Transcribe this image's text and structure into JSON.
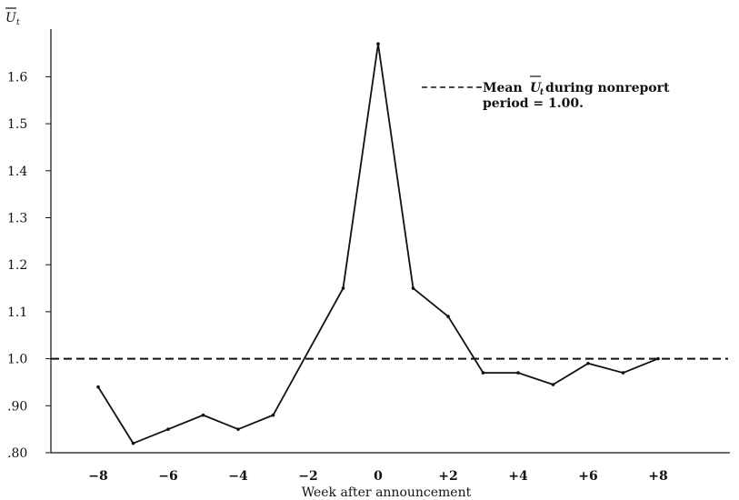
{
  "chart_data": {
    "type": "line",
    "xlabel": "Week after announcement",
    "ylabel": "U",
    "ylabel_subscript": "t",
    "xlim": [
      -9,
      10.5
    ],
    "ylim": [
      0.8,
      1.7
    ],
    "x_ticks": [
      {
        "value": -8,
        "label": "−8"
      },
      {
        "value": -6,
        "label": "−6"
      },
      {
        "value": -4,
        "label": "−4"
      },
      {
        "value": -2,
        "label": "−2"
      },
      {
        "value": 0,
        "label": "0"
      },
      {
        "value": 2,
        "label": "+2"
      },
      {
        "value": 4,
        "label": "+4"
      },
      {
        "value": 6,
        "label": "+6"
      },
      {
        "value": 8,
        "label": "+8"
      }
    ],
    "y_ticks": [
      {
        "value": 0.8,
        "label": ".80"
      },
      {
        "value": 0.9,
        "label": ".90"
      },
      {
        "value": 1.0,
        "label": "1.0"
      },
      {
        "value": 1.1,
        "label": "1.1"
      },
      {
        "value": 1.2,
        "label": "1.2"
      },
      {
        "value": 1.3,
        "label": "1.3"
      },
      {
        "value": 1.4,
        "label": "1.4"
      },
      {
        "value": 1.5,
        "label": "1.5"
      },
      {
        "value": 1.6,
        "label": "1.6"
      }
    ],
    "series": [
      {
        "x": [
          -8,
          -7,
          -6,
          -5,
          -4,
          -3,
          -1,
          0,
          1,
          2,
          3,
          4,
          5,
          6,
          7,
          8
        ],
        "y": [
          0.94,
          0.82,
          0.85,
          0.88,
          0.85,
          0.88,
          1.15,
          1.67,
          1.15,
          1.09,
          0.97,
          0.97,
          0.945,
          0.99,
          0.97,
          1.0
        ]
      }
    ],
    "reference_line": {
      "y": 1.0,
      "style": "dashed"
    },
    "legend": {
      "line1_prefix": "Mean ",
      "symbol": "U",
      "symbol_subscript": "t",
      "line1_suffix": " during nonreport",
      "line2": "period = 1.00.",
      "position": "top-right"
    },
    "grid": false
  }
}
